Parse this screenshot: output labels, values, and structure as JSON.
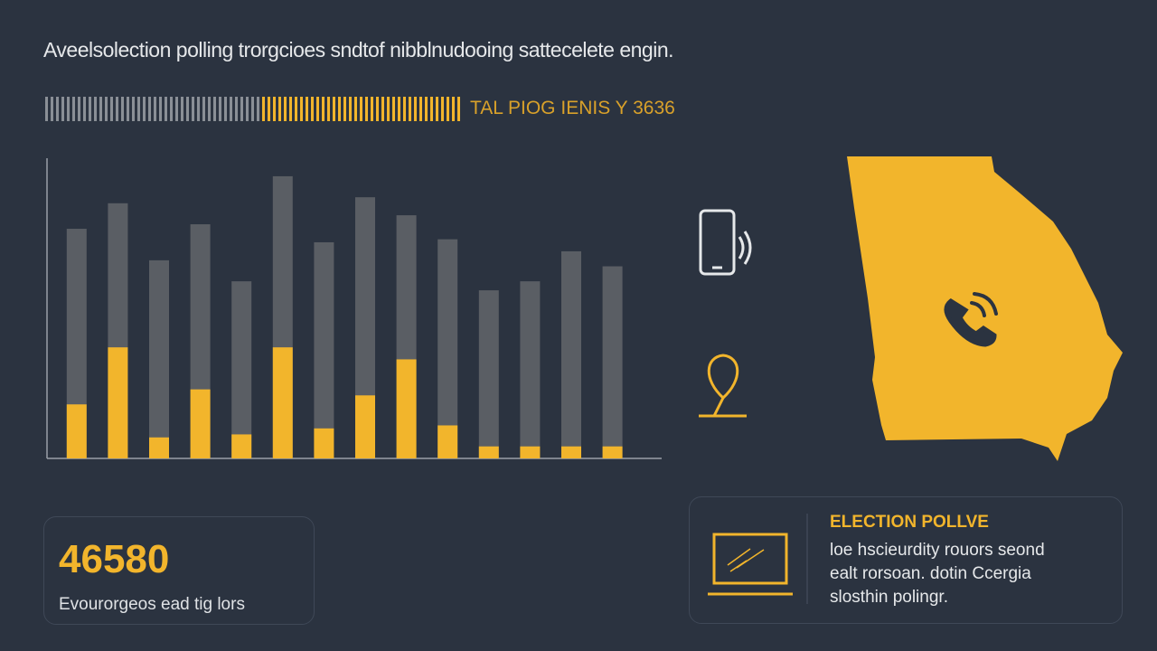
{
  "header": {
    "subtitle": "Aveelsolection polling trorgcioes sndtof nibblnudooing sattecelete engin.",
    "progress_label": "TAL PIOG IENIS Y 3636"
  },
  "chart_data": {
    "type": "bar",
    "ylim": [
      0,
      100
    ],
    "grid": false,
    "series": [
      {
        "color": "#5a5e64",
        "values": [
          76.5,
          85,
          66,
          78,
          59,
          94,
          72,
          87,
          81,
          73,
          56,
          59,
          69,
          64
        ]
      },
      {
        "color": "#f2b52c",
        "values": [
          18,
          37,
          7,
          23,
          8,
          37,
          10,
          21,
          33,
          11,
          4,
          4,
          4,
          4
        ]
      }
    ]
  },
  "stat_card": {
    "value": "46580",
    "caption": "Evourorgeos ead tig lors"
  },
  "info_card": {
    "title": "ELECTION POLLVE",
    "lines": [
      "loe hscieurdity rouors seond",
      "ealt rorsoan. dotin Ccergia",
      "slosthin polingr."
    ]
  }
}
